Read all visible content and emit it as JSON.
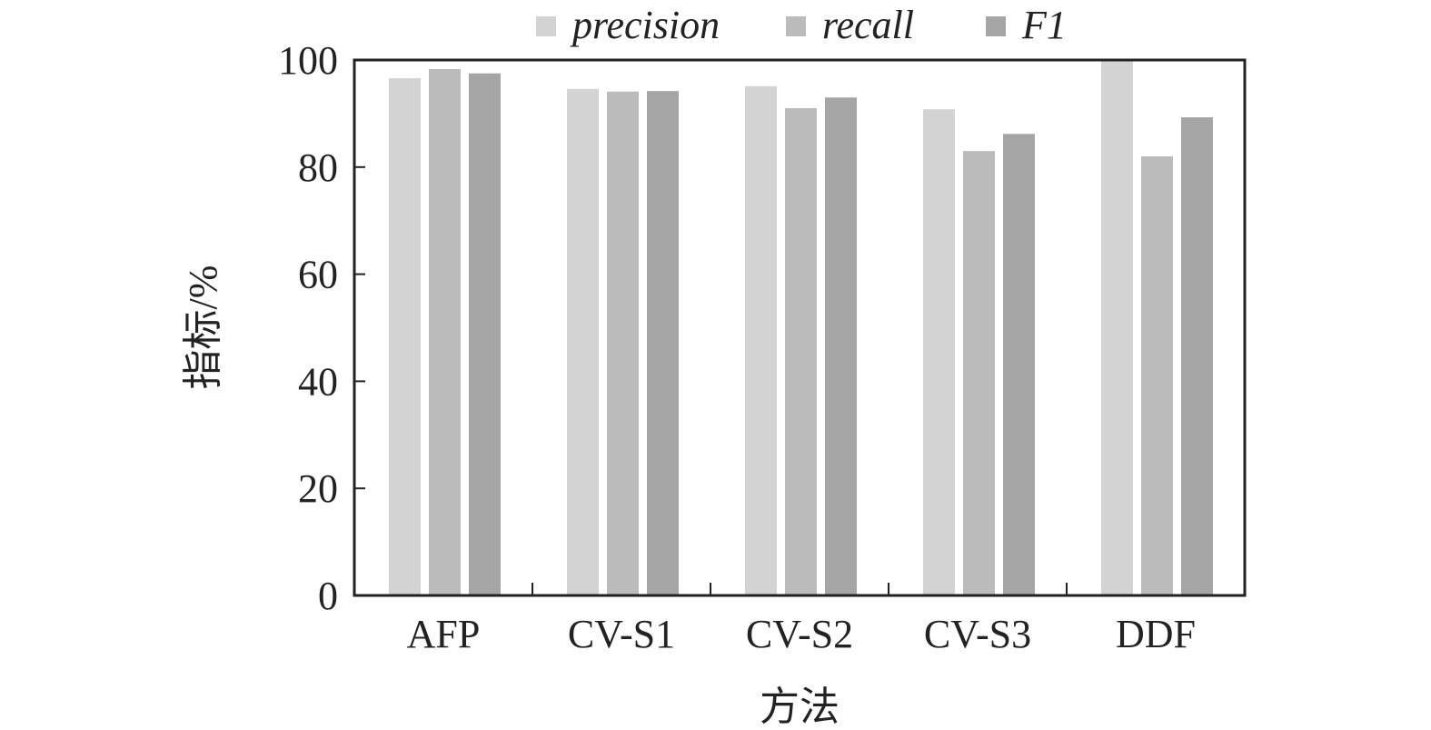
{
  "chart_data": {
    "type": "bar",
    "title": "",
    "xlabel": "方法",
    "ylabel": "指标/%",
    "categories": [
      "AFP",
      "CV-S1",
      "CV-S2",
      "CV-S3",
      "DDF"
    ],
    "series": [
      {
        "name": "precision",
        "color": "#d3d3d3",
        "values": [
          96.6,
          94.6,
          95.1,
          90.8,
          99.8
        ]
      },
      {
        "name": "recall",
        "color": "#bbbbbb",
        "values": [
          98.3,
          94.1,
          91.0,
          83.0,
          82.0
        ]
      },
      {
        "name": "F1",
        "color": "#a6a5a5",
        "values": [
          97.5,
          94.2,
          93.0,
          86.2,
          89.3
        ]
      }
    ],
    "ylim": [
      0,
      100
    ],
    "yticks": [
      "0",
      "20",
      "40",
      "60",
      "80",
      "100"
    ],
    "legend": "top-center",
    "grid": false
  }
}
